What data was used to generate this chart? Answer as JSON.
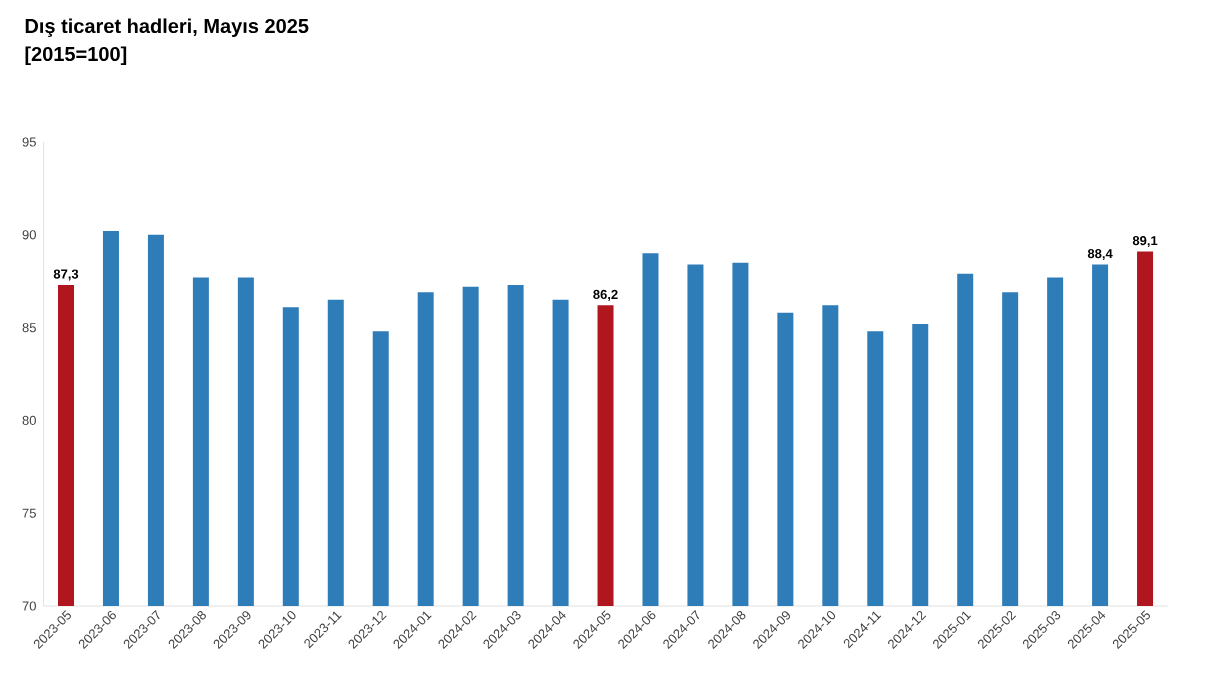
{
  "chart_data": {
    "type": "bar",
    "title": "Dış ticaret hadleri, Mayıs 2025",
    "subtitle": "[2015=100]",
    "categories": [
      "2023-05",
      "2023-06",
      "2023-07",
      "2023-08",
      "2023-09",
      "2023-10",
      "2023-11",
      "2023-12",
      "2024-01",
      "2024-02",
      "2024-03",
      "2024-04",
      "2024-05",
      "2024-06",
      "2024-07",
      "2024-08",
      "2024-09",
      "2024-10",
      "2024-11",
      "2024-12",
      "2025-01",
      "2025-02",
      "2025-03",
      "2025-04",
      "2025-05"
    ],
    "values": [
      87.3,
      90.2,
      90.0,
      87.7,
      87.7,
      86.1,
      86.5,
      84.8,
      86.9,
      87.2,
      87.3,
      86.5,
      86.2,
      89.0,
      88.4,
      88.5,
      85.8,
      86.2,
      84.8,
      85.2,
      87.9,
      86.9,
      87.7,
      88.4,
      89.1
    ],
    "value_labels": [
      "87,3",
      null,
      null,
      null,
      null,
      null,
      null,
      null,
      null,
      null,
      null,
      null,
      "86,2",
      null,
      null,
      null,
      null,
      null,
      null,
      null,
      null,
      null,
      null,
      "88,4",
      "89,1"
    ],
    "colors": [
      "#b0161e",
      "#2e7cb8",
      "#2e7cb8",
      "#2e7cb8",
      "#2e7cb8",
      "#2e7cb8",
      "#2e7cb8",
      "#2e7cb8",
      "#2e7cb8",
      "#2e7cb8",
      "#2e7cb8",
      "#2e7cb8",
      "#b0161e",
      "#2e7cb8",
      "#2e7cb8",
      "#2e7cb8",
      "#2e7cb8",
      "#2e7cb8",
      "#2e7cb8",
      "#2e7cb8",
      "#2e7cb8",
      "#2e7cb8",
      "#2e7cb8",
      "#2e7cb8",
      "#b0161e"
    ],
    "ylim": [
      70,
      95
    ],
    "yticks": [
      70,
      75,
      80,
      85,
      90,
      95
    ],
    "grid": false
  }
}
